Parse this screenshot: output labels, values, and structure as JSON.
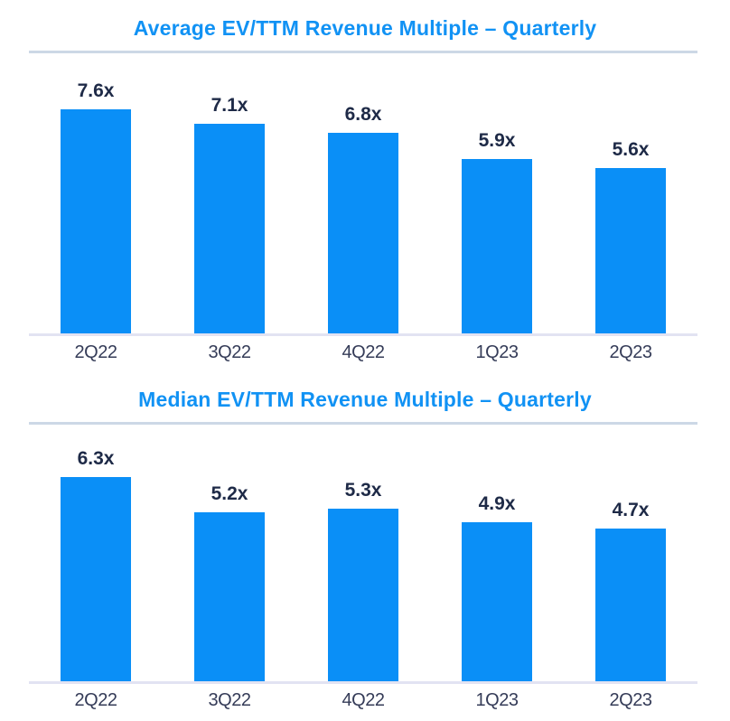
{
  "colors": {
    "bar_blue": "#0a8ff7",
    "title_blue": "#1192f4",
    "title_divider": "#ccd8e6",
    "baseline": "#e2e3f2",
    "value_label_text": "#1e2a47",
    "axis_label_text": "#353c58",
    "background": "#ffffff"
  },
  "chart_data": [
    {
      "type": "bar",
      "title": "Average EV/TTM Revenue Multiple – Quarterly",
      "categories": [
        "2Q22",
        "3Q22",
        "4Q22",
        "1Q23",
        "2Q23"
      ],
      "values": [
        7.6,
        7.1,
        6.8,
        5.9,
        5.6
      ],
      "value_labels": [
        "7.6x",
        "7.1x",
        "6.8x",
        "5.9x",
        "5.6x"
      ],
      "xlabel": "",
      "ylabel": "",
      "ylim": [
        0,
        9.5
      ],
      "grid": false,
      "legend": false,
      "y_axis_visible": false
    },
    {
      "type": "bar",
      "title": "Median EV/TTM Revenue Multiple – Quarterly",
      "categories": [
        "2Q22",
        "3Q22",
        "4Q22",
        "1Q23",
        "2Q23"
      ],
      "values": [
        6.3,
        5.2,
        5.3,
        4.9,
        4.7
      ],
      "value_labels": [
        "6.3x",
        "5.2x",
        "5.3x",
        "4.9x",
        "4.7x"
      ],
      "xlabel": "",
      "ylabel": "",
      "ylim": [
        0,
        7.9
      ],
      "grid": false,
      "legend": false,
      "y_axis_visible": false
    }
  ]
}
